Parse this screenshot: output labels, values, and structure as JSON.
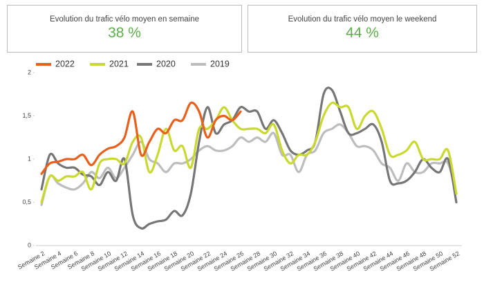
{
  "kpis": [
    {
      "label": "Evolution du trafic vélo moyen en semaine",
      "value": "38 %"
    },
    {
      "label": "Evolution du trafic vélo moyen le weekend",
      "value": "44 %"
    }
  ],
  "chart_data": {
    "type": "line",
    "categories": [
      "Semaine 2",
      null,
      "Semaine 4",
      null,
      "Semaine 6",
      null,
      "Semaine 8",
      null,
      "Semaine 10",
      null,
      "Semaine 12",
      null,
      "Semaine 14",
      null,
      "Semaine 16",
      null,
      "Semaine 18",
      null,
      "Semaine 20",
      null,
      "Semaine 22",
      null,
      "Semaine 24",
      null,
      "Semaine 26",
      null,
      "Semaine 28",
      null,
      "Semaine 30",
      null,
      "Semaine 32",
      null,
      "Semaine 34",
      null,
      "Semaine 36",
      null,
      "Semaine 38",
      null,
      "Semaine 40",
      null,
      "Semaine 42",
      null,
      "Semaine 44",
      null,
      "Semaine 46",
      null,
      "Semaine 48",
      null,
      "Semaine 50",
      null,
      "Semaine 52"
    ],
    "series": [
      {
        "name": "2022",
        "color": "#e8601c",
        "values": [
          0.83,
          0.95,
          0.97,
          1.0,
          1.0,
          1.05,
          0.93,
          1.05,
          1.12,
          1.15,
          1.25,
          1.55,
          1.05,
          1.2,
          1.35,
          1.3,
          1.45,
          1.45,
          1.65,
          1.55,
          1.25,
          1.45,
          1.5,
          1.45,
          1.55,
          null,
          null,
          null,
          null,
          null,
          null,
          null,
          null,
          null,
          null,
          null,
          null,
          null,
          null,
          null,
          null,
          null,
          null,
          null,
          null,
          null,
          null,
          null,
          null,
          null,
          null
        ]
      },
      {
        "name": "2021",
        "color": "#c9d92f",
        "values": [
          0.5,
          0.8,
          0.75,
          0.8,
          0.8,
          0.85,
          0.65,
          0.95,
          1.0,
          1.0,
          0.95,
          1.2,
          1.25,
          0.85,
          1.05,
          1.35,
          1.1,
          1.15,
          0.9,
          1.35,
          1.35,
          1.45,
          1.6,
          1.45,
          1.35,
          1.35,
          1.35,
          1.3,
          1.4,
          1.1,
          0.95,
          1.05,
          1.05,
          1.2,
          1.5,
          1.65,
          1.6,
          1.6,
          1.35,
          1.5,
          1.55,
          1.35,
          1.05,
          1.05,
          1.1,
          1.2,
          1.0,
          1.0,
          1.0,
          1.1,
          0.6
        ]
      },
      {
        "name": "2020",
        "color": "#767676",
        "values": [
          0.65,
          1.05,
          0.95,
          0.9,
          0.9,
          0.82,
          0.8,
          0.7,
          0.85,
          0.75,
          1.0,
          0.35,
          0.2,
          0.25,
          0.28,
          0.3,
          0.4,
          0.35,
          0.6,
          1.2,
          1.6,
          1.3,
          1.4,
          1.45,
          1.6,
          1.55,
          1.55,
          1.35,
          1.45,
          1.3,
          1.1,
          1.05,
          1.1,
          1.2,
          1.75,
          1.8,
          1.55,
          1.3,
          1.3,
          1.35,
          1.4,
          1.2,
          0.75,
          0.72,
          0.75,
          0.85,
          1.0,
          0.9,
          0.85,
          1.0,
          0.5
        ]
      },
      {
        "name": "2019",
        "color": "#bdbdbd",
        "values": [
          0.47,
          0.8,
          0.72,
          0.67,
          0.65,
          0.72,
          0.85,
          0.78,
          0.9,
          0.78,
          0.9,
          1.05,
          1.2,
          1.0,
          0.95,
          0.85,
          0.95,
          0.95,
          1.0,
          1.1,
          1.15,
          1.1,
          1.1,
          1.15,
          1.25,
          1.2,
          1.25,
          1.2,
          1.3,
          1.05,
          1.05,
          0.85,
          1.05,
          1.1,
          1.3,
          1.35,
          1.4,
          1.3,
          1.15,
          1.15,
          1.1,
          0.95,
          0.9,
          0.75,
          0.95,
          0.85,
          0.85,
          0.95,
          0.95,
          0.95,
          0.6
        ]
      }
    ],
    "ylim": [
      0,
      2
    ],
    "yticks": [
      0,
      {
        "value": 0.5,
        "label": "0,5"
      },
      1,
      {
        "value": 1.5,
        "label": "1,5"
      },
      2
    ],
    "grid": false,
    "legend": "top-left"
  }
}
